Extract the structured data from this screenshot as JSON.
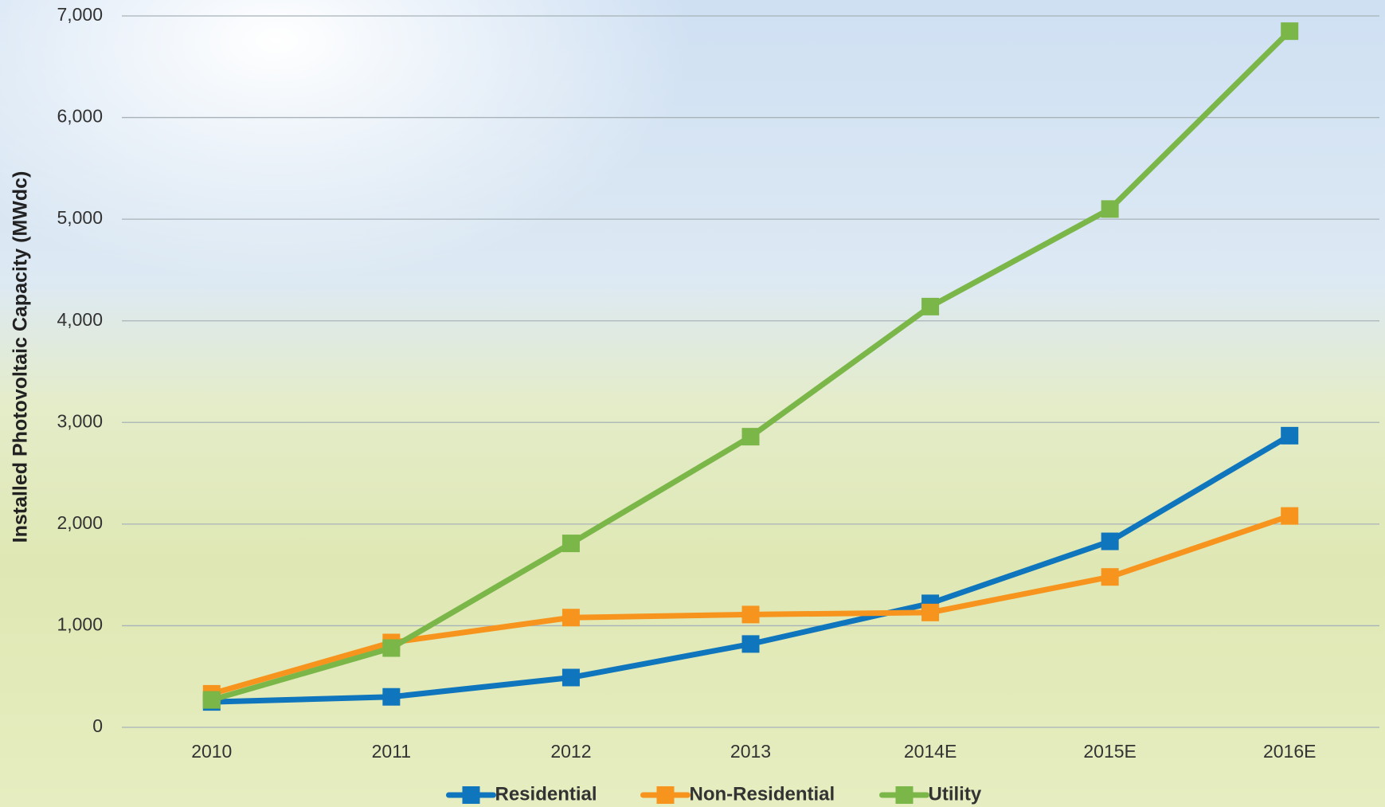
{
  "chart_data": {
    "type": "line",
    "y_label": "Installed Photovoltaic Capacity (MWdc)",
    "categories": [
      "2010",
      "2011",
      "2012",
      "2013",
      "2014E",
      "2015E",
      "2016E"
    ],
    "series": [
      {
        "name": "Residential",
        "color": "#0f75bc",
        "values": [
          250,
          300,
          490,
          820,
          1220,
          1830,
          2870
        ]
      },
      {
        "name": "Non-Residential",
        "color": "#f7941d",
        "values": [
          330,
          835,
          1080,
          1110,
          1130,
          1480,
          2080
        ]
      },
      {
        "name": "Utility",
        "color": "#7ab648",
        "values": [
          270,
          780,
          1810,
          2860,
          4140,
          5100,
          6850
        ]
      }
    ],
    "ylim": [
      0,
      7000
    ],
    "yticks": [
      0,
      {
        "value": 1000,
        "label": "1,000"
      },
      {
        "value": 2000,
        "label": "2,000"
      },
      {
        "value": 3000,
        "label": "3,000"
      },
      {
        "value": 4000,
        "label": "4,000"
      },
      {
        "value": 5000,
        "label": "5,000"
      },
      {
        "value": 6000,
        "label": "6,000"
      },
      {
        "value": 7000,
        "label": "7,000"
      }
    ],
    "grid": true,
    "legend": "bottom"
  }
}
